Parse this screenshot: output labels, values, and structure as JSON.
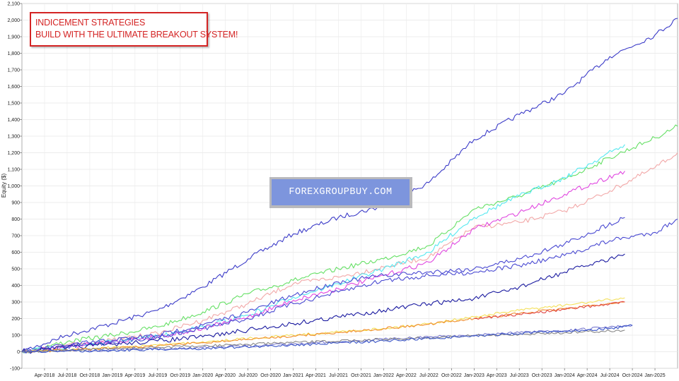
{
  "title_box": {
    "line1": "INDICEMENT STRATEGIES",
    "line2": "BUILD WITH THE ULTIMATE BREAKOUT SYSTEM!"
  },
  "watermark": "FOREXGROUPBUY.COM",
  "chart_data": {
    "type": "line",
    "title": "",
    "xlabel": "",
    "ylabel": "Equity ($)",
    "ylim": [
      -100,
      2100
    ],
    "yticks": [
      -100,
      0,
      100,
      200,
      300,
      400,
      500,
      600,
      700,
      800,
      900,
      1000,
      1100,
      1200,
      1300,
      1400,
      1500,
      1600,
      1700,
      1800,
      1900,
      2000,
      2100
    ],
    "ytick_labels": [
      "-100",
      "0",
      "100",
      "200",
      "300",
      "400",
      "500",
      "600",
      "700",
      "800",
      "900",
      "1,000",
      "1,100",
      "1,200",
      "1,300",
      "1,400",
      "1,500",
      "1,600",
      "1,700",
      "1,800",
      "1,900",
      "2,000",
      "2,100"
    ],
    "xlim": [
      "2018-01",
      "2025-04"
    ],
    "xticks": [
      "2018-04",
      "2018-07",
      "2018-10",
      "2019-01",
      "2019-04",
      "2019-07",
      "2019-10",
      "2020-01",
      "2020-04",
      "2020-07",
      "2020-10",
      "2021-01",
      "2021-04",
      "2021-07",
      "2021-10",
      "2022-01",
      "2022-04",
      "2022-07",
      "2022-10",
      "2023-01",
      "2023-04",
      "2023-07",
      "2023-10",
      "2024-01",
      "2024-04",
      "2024-07",
      "2024-10",
      "2025-01"
    ],
    "xtick_labels": [
      "Apr-2018",
      "Jul-2018",
      "Oct-2018",
      "Jan-2019",
      "Apr-2019",
      "Jul-2019",
      "Oct-2019",
      "Jan-2020",
      "Apr-2020",
      "Jul-2020",
      "Oct-2020",
      "Jan-2021",
      "Apr-2021",
      "Jul-2021",
      "Oct-2021",
      "Jan-2022",
      "Apr-2022",
      "Jul-2022",
      "Oct-2022",
      "Jan-2023",
      "Apr-2023",
      "Jul-2023",
      "Oct-2023",
      "Jan-2024",
      "Apr-2024",
      "Jul-2024",
      "Oct-2024",
      "Jan-2025"
    ],
    "grid": true,
    "legend": "none",
    "series": [
      {
        "color": "#3c3cc8",
        "points": [
          [
            "2018-01",
            0
          ],
          [
            "2018-07",
            100
          ],
          [
            "2019-01",
            170
          ],
          [
            "2019-07",
            250
          ],
          [
            "2020-01",
            390
          ],
          [
            "2020-07",
            560
          ],
          [
            "2021-01",
            710
          ],
          [
            "2021-07",
            810
          ],
          [
            "2022-01",
            880
          ],
          [
            "2022-07",
            1020
          ],
          [
            "2023-01",
            1280
          ],
          [
            "2023-07",
            1430
          ],
          [
            "2024-01",
            1560
          ],
          [
            "2024-07",
            1780
          ],
          [
            "2025-01",
            1910
          ],
          [
            "2025-04",
            2010
          ]
        ]
      },
      {
        "color": "#66e066",
        "points": [
          [
            "2018-01",
            0
          ],
          [
            "2018-07",
            60
          ],
          [
            "2019-01",
            100
          ],
          [
            "2019-07",
            150
          ],
          [
            "2020-01",
            240
          ],
          [
            "2020-07",
            350
          ],
          [
            "2021-01",
            430
          ],
          [
            "2021-07",
            500
          ],
          [
            "2022-01",
            560
          ],
          [
            "2022-07",
            640
          ],
          [
            "2023-01",
            860
          ],
          [
            "2023-07",
            940
          ],
          [
            "2024-01",
            1040
          ],
          [
            "2024-07",
            1170
          ],
          [
            "2025-01",
            1290
          ],
          [
            "2025-04",
            1360
          ]
        ]
      },
      {
        "color": "#f2a8a8",
        "points": [
          [
            "2018-01",
            0
          ],
          [
            "2018-07",
            40
          ],
          [
            "2019-01",
            70
          ],
          [
            "2019-07",
            110
          ],
          [
            "2020-01",
            190
          ],
          [
            "2020-07",
            290
          ],
          [
            "2021-01",
            410
          ],
          [
            "2021-07",
            450
          ],
          [
            "2022-01",
            510
          ],
          [
            "2022-07",
            570
          ],
          [
            "2023-01",
            750
          ],
          [
            "2023-07",
            780
          ],
          [
            "2024-01",
            850
          ],
          [
            "2024-07",
            970
          ],
          [
            "2025-01",
            1110
          ],
          [
            "2025-04",
            1200
          ]
        ]
      },
      {
        "color": "#55e8f0",
        "points": [
          [
            "2018-01",
            0
          ],
          [
            "2018-07",
            30
          ],
          [
            "2019-01",
            60
          ],
          [
            "2019-07",
            90
          ],
          [
            "2020-01",
            150
          ],
          [
            "2020-07",
            220
          ],
          [
            "2021-01",
            330
          ],
          [
            "2021-07",
            410
          ],
          [
            "2022-01",
            500
          ],
          [
            "2022-07",
            600
          ],
          [
            "2023-01",
            810
          ],
          [
            "2023-07",
            940
          ],
          [
            "2024-01",
            1050
          ],
          [
            "2024-09",
            1250
          ]
        ]
      },
      {
        "color": "#e048e0",
        "points": [
          [
            "2018-01",
            0
          ],
          [
            "2018-07",
            30
          ],
          [
            "2019-01",
            60
          ],
          [
            "2019-07",
            90
          ],
          [
            "2020-01",
            140
          ],
          [
            "2020-07",
            210
          ],
          [
            "2021-01",
            310
          ],
          [
            "2021-07",
            380
          ],
          [
            "2022-01",
            460
          ],
          [
            "2022-07",
            540
          ],
          [
            "2023-01",
            740
          ],
          [
            "2023-07",
            840
          ],
          [
            "2024-01",
            950
          ],
          [
            "2024-09",
            1090
          ]
        ]
      },
      {
        "color": "#4a4ad2",
        "points": [
          [
            "2018-01",
            0
          ],
          [
            "2018-07",
            40
          ],
          [
            "2019-01",
            70
          ],
          [
            "2019-07",
            100
          ],
          [
            "2020-01",
            160
          ],
          [
            "2020-07",
            240
          ],
          [
            "2021-01",
            340
          ],
          [
            "2021-07",
            420
          ],
          [
            "2022-01",
            460
          ],
          [
            "2022-07",
            480
          ],
          [
            "2023-01",
            500
          ],
          [
            "2023-07",
            560
          ],
          [
            "2024-01",
            650
          ],
          [
            "2024-09",
            810
          ]
        ]
      },
      {
        "color": "#4a4ad2",
        "points": [
          [
            "2018-01",
            0
          ],
          [
            "2018-07",
            30
          ],
          [
            "2019-01",
            60
          ],
          [
            "2019-07",
            90
          ],
          [
            "2020-01",
            140
          ],
          [
            "2020-07",
            200
          ],
          [
            "2021-01",
            290
          ],
          [
            "2021-07",
            360
          ],
          [
            "2022-01",
            430
          ],
          [
            "2022-07",
            460
          ],
          [
            "2023-01",
            480
          ],
          [
            "2023-07",
            520
          ],
          [
            "2024-01",
            580
          ],
          [
            "2024-07",
            670
          ],
          [
            "2025-01",
            720
          ],
          [
            "2025-04",
            800
          ]
        ]
      },
      {
        "color": "#1a1aa0",
        "points": [
          [
            "2018-01",
            0
          ],
          [
            "2018-07",
            25
          ],
          [
            "2019-01",
            45
          ],
          [
            "2019-07",
            65
          ],
          [
            "2020-01",
            90
          ],
          [
            "2020-07",
            130
          ],
          [
            "2021-01",
            170
          ],
          [
            "2021-07",
            210
          ],
          [
            "2022-01",
            250
          ],
          [
            "2022-07",
            290
          ],
          [
            "2023-01",
            320
          ],
          [
            "2023-07",
            390
          ],
          [
            "2024-01",
            480
          ],
          [
            "2024-09",
            590
          ]
        ]
      },
      {
        "color": "#f4e05a",
        "points": [
          [
            "2018-01",
            0
          ],
          [
            "2018-07",
            10
          ],
          [
            "2019-01",
            25
          ],
          [
            "2019-07",
            40
          ],
          [
            "2020-01",
            60
          ],
          [
            "2020-07",
            80
          ],
          [
            "2021-01",
            100
          ],
          [
            "2021-07",
            120
          ],
          [
            "2022-01",
            140
          ],
          [
            "2022-07",
            170
          ],
          [
            "2023-01",
            210
          ],
          [
            "2023-07",
            250
          ],
          [
            "2024-01",
            280
          ],
          [
            "2024-09",
            325
          ]
        ]
      },
      {
        "color": "#f08c2c",
        "points": [
          [
            "2018-01",
            0
          ],
          [
            "2018-07",
            10
          ],
          [
            "2019-01",
            20
          ],
          [
            "2019-07",
            35
          ],
          [
            "2020-01",
            55
          ],
          [
            "2020-07",
            75
          ],
          [
            "2021-01",
            95
          ],
          [
            "2021-07",
            115
          ],
          [
            "2022-01",
            140
          ],
          [
            "2022-07",
            165
          ],
          [
            "2023-01",
            200
          ],
          [
            "2023-07",
            230
          ],
          [
            "2024-01",
            260
          ],
          [
            "2024-09",
            300
          ]
        ]
      },
      {
        "color": "#e04848",
        "points": [
          [
            "2023-01",
            200
          ],
          [
            "2023-07",
            225
          ],
          [
            "2024-01",
            255
          ],
          [
            "2024-09",
            300
          ]
        ]
      },
      {
        "color": "#7a7ad0",
        "points": [
          [
            "2018-01",
            0
          ],
          [
            "2019-01",
            10
          ],
          [
            "2020-01",
            25
          ],
          [
            "2021-01",
            45
          ],
          [
            "2022-01",
            75
          ],
          [
            "2022-07",
            90
          ],
          [
            "2023-01",
            100
          ],
          [
            "2023-07",
            115
          ],
          [
            "2024-01",
            125
          ],
          [
            "2024-07",
            150
          ],
          [
            "2024-10",
            160
          ]
        ]
      },
      {
        "color": "#888888",
        "points": [
          [
            "2018-01",
            0
          ],
          [
            "2019-01",
            18
          ],
          [
            "2020-01",
            35
          ],
          [
            "2021-01",
            55
          ],
          [
            "2022-01",
            75
          ],
          [
            "2022-07",
            85
          ],
          [
            "2023-01",
            95
          ],
          [
            "2023-07",
            105
          ],
          [
            "2024-01",
            115
          ],
          [
            "2024-07",
            125
          ],
          [
            "2024-09",
            130
          ]
        ]
      },
      {
        "color": "#3a55c8",
        "points": [
          [
            "2018-01",
            0
          ],
          [
            "2019-01",
            8
          ],
          [
            "2020-01",
            20
          ],
          [
            "2021-01",
            40
          ],
          [
            "2022-01",
            65
          ],
          [
            "2023-01",
            95
          ],
          [
            "2024-01",
            125
          ],
          [
            "2024-07",
            140
          ],
          [
            "2024-10",
            158
          ]
        ]
      }
    ]
  }
}
